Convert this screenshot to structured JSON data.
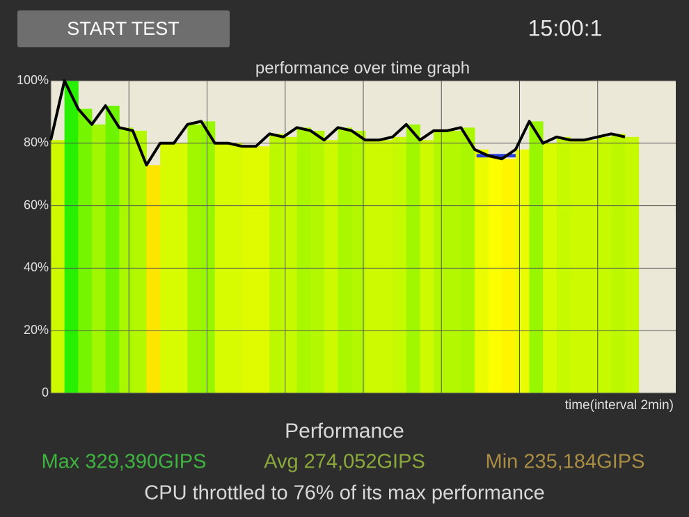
{
  "header": {
    "button": "START TEST",
    "timer": "15:00:1"
  },
  "chart_data": {
    "type": "line",
    "title": "performance over time graph",
    "x_label": "time(interval 2min)",
    "xlim": [
      0,
      16
    ],
    "xticks": [
      2,
      4,
      6,
      8,
      10,
      12,
      14
    ],
    "ylim": [
      0,
      100
    ],
    "yticks": [
      0,
      {
        "value": 20,
        "label": "20%"
      },
      {
        "value": 40,
        "label": "40%"
      },
      {
        "value": 60,
        "label": "60%"
      },
      {
        "value": 80,
        "label": "80%"
      },
      {
        "value": 100,
        "label": "100%"
      }
    ],
    "grid": true,
    "x": [
      0,
      0.35,
      0.7,
      1.05,
      1.4,
      1.75,
      2.1,
      2.45,
      2.8,
      3.15,
      3.5,
      3.85,
      4.2,
      4.55,
      4.9,
      5.25,
      5.6,
      5.95,
      6.3,
      6.65,
      7.0,
      7.35,
      7.7,
      8.05,
      8.4,
      8.75,
      9.1,
      9.45,
      9.8,
      10.15,
      10.5,
      10.85,
      11.2,
      11.55,
      11.9,
      12.25,
      12.6,
      12.95,
      13.3,
      13.65,
      14.0,
      14.35,
      14.7
    ],
    "series": [
      {
        "color": "#000000",
        "values": [
          81,
          100,
          91,
          86,
          92,
          85,
          84,
          73,
          80,
          80,
          86,
          87,
          80,
          80,
          79,
          79,
          83,
          82,
          85,
          84,
          81,
          85,
          84,
          81,
          81,
          82,
          86,
          81,
          84,
          84,
          85,
          78,
          76,
          75,
          78,
          87,
          80,
          82,
          81,
          81,
          82,
          83,
          82
        ]
      }
    ],
    "min_marker": {
      "y": 76,
      "x": [
        10.9,
        11.9
      ],
      "color": "#2a3fe0"
    }
  },
  "stats": {
    "heading": "Performance",
    "max": "Max 329,390GIPS",
    "avg": "Avg 274,052GIPS",
    "min": "Min 235,184GIPS",
    "summary": "CPU throttled to 76% of its max performance"
  }
}
